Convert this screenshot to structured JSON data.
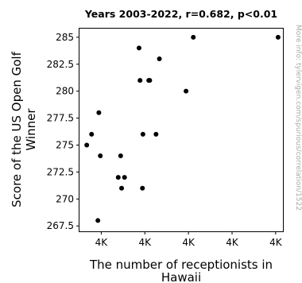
{
  "chart_data": {
    "type": "scatter",
    "title": "Years 2003-2022, r=0.682, p<0.01",
    "xlabel_lines": [
      "The number of receptionists in",
      "Hawaii"
    ],
    "ylabel_lines": [
      "Score of the US Open Golf",
      "Winner"
    ],
    "watermark": "More info: tylervigen.com/spurious/correlation/1522",
    "yticks": [
      {
        "value": 267.5,
        "label": "267.5"
      },
      {
        "value": 270,
        "label": "270"
      },
      {
        "value": 272.5,
        "label": "272.5"
      },
      {
        "value": 275,
        "label": "275"
      },
      {
        "value": 277.5,
        "label": "277.5"
      },
      {
        "value": 280,
        "label": "280"
      },
      {
        "value": 282.5,
        "label": "282.5"
      },
      {
        "value": 285,
        "label": "285"
      }
    ],
    "xticks": [
      {
        "value": 3920,
        "label": "4K"
      },
      {
        "value": 4010,
        "label": "4K"
      },
      {
        "value": 4100,
        "label": "4K"
      },
      {
        "value": 4190,
        "label": "4K"
      },
      {
        "value": 4280,
        "label": "4K"
      }
    ],
    "xlim": [
      3875,
      4295
    ],
    "ylim": [
      267,
      285.8
    ],
    "color": "#000000",
    "points": [
      {
        "x": 3890,
        "y": 275
      },
      {
        "x": 3900,
        "y": 276
      },
      {
        "x": 3915,
        "y": 278
      },
      {
        "x": 3918,
        "y": 274
      },
      {
        "x": 3913,
        "y": 268
      },
      {
        "x": 3955,
        "y": 272
      },
      {
        "x": 3960,
        "y": 274
      },
      {
        "x": 3962,
        "y": 271
      },
      {
        "x": 3968,
        "y": 272
      },
      {
        "x": 3998,
        "y": 284
      },
      {
        "x": 4000,
        "y": 281
      },
      {
        "x": 4005,
        "y": 271
      },
      {
        "x": 4006,
        "y": 276
      },
      {
        "x": 4018,
        "y": 281
      },
      {
        "x": 4020,
        "y": 281
      },
      {
        "x": 4033,
        "y": 276
      },
      {
        "x": 4040,
        "y": 283
      },
      {
        "x": 4095,
        "y": 280
      },
      {
        "x": 4110,
        "y": 285
      },
      {
        "x": 4285,
        "y": 285
      }
    ]
  }
}
